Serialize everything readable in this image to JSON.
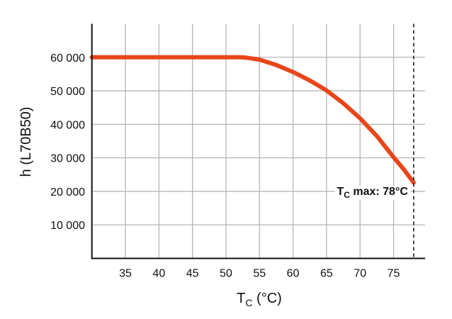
{
  "chart_data": {
    "type": "line",
    "title": "",
    "xlabel": "T",
    "xlabel_sub": "C",
    "xlabel_unit": " (°C)",
    "ylabel": "h (L70B50)",
    "xlim": [
      30,
      79.7
    ],
    "ylim": [
      0,
      70000
    ],
    "xticks": [
      35,
      40,
      45,
      50,
      55,
      60,
      65,
      70,
      75
    ],
    "yticks": [
      10000,
      20000,
      30000,
      40000,
      50000,
      60000
    ],
    "ytick_labels": [
      "10 000",
      "20 000",
      "30 000",
      "40 000",
      "50 000",
      "60 000"
    ],
    "grid": true,
    "series": [
      {
        "color": "#e8461a",
        "x": [
          30,
          35,
          40,
          45,
          50,
          52,
          53,
          55,
          57.5,
          60,
          62.5,
          65,
          67.5,
          70,
          72.5,
          75,
          76.5,
          78
        ],
        "y": [
          60000,
          60000,
          60000,
          60000,
          60000,
          60000,
          59900,
          59300,
          57700,
          55600,
          53100,
          50100,
          46300,
          41800,
          36500,
          30200,
          26600,
          22600
        ]
      }
    ],
    "annotation": {
      "x": 78,
      "text_main": "T",
      "text_sub": "C",
      "text_rest": " max: 78°C",
      "line_style": "dashed"
    }
  }
}
